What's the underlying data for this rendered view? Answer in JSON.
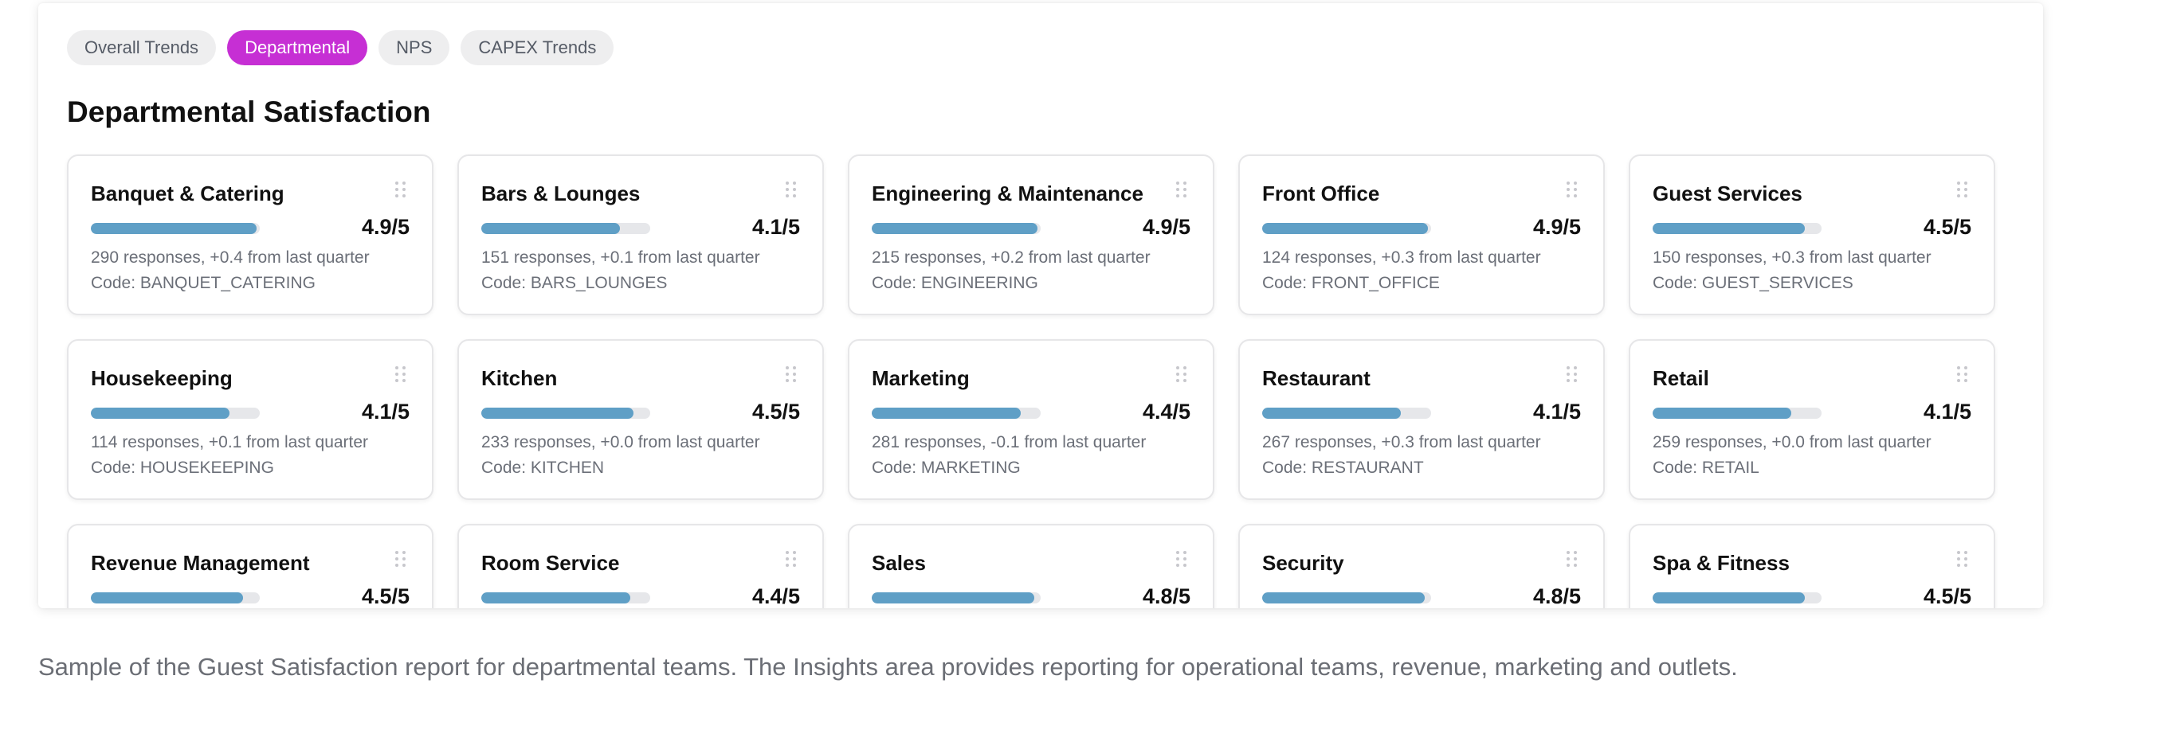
{
  "tabs": [
    {
      "label": "Overall Trends",
      "active": false
    },
    {
      "label": "Departmental",
      "active": true
    },
    {
      "label": "NPS",
      "active": false
    },
    {
      "label": "CAPEX Trends",
      "active": false
    }
  ],
  "section_title": "Departmental Satisfaction",
  "score_max": 5,
  "departments": [
    {
      "name": "Banquet & Catering",
      "score": 4.9,
      "score_text": "4.9/5",
      "responses": "290 responses, +0.4 from last quarter",
      "code": "Code: BANQUET_CATERING"
    },
    {
      "name": "Bars & Lounges",
      "score": 4.1,
      "score_text": "4.1/5",
      "responses": "151 responses, +0.1 from last quarter",
      "code": "Code: BARS_LOUNGES"
    },
    {
      "name": "Engineering & Maintenance",
      "score": 4.9,
      "score_text": "4.9/5",
      "responses": "215 responses, +0.2 from last quarter",
      "code": "Code: ENGINEERING"
    },
    {
      "name": "Front Office",
      "score": 4.9,
      "score_text": "4.9/5",
      "responses": "124 responses, +0.3 from last quarter",
      "code": "Code: FRONT_OFFICE"
    },
    {
      "name": "Guest Services",
      "score": 4.5,
      "score_text": "4.5/5",
      "responses": "150 responses, +0.3 from last quarter",
      "code": "Code: GUEST_SERVICES"
    },
    {
      "name": "Housekeeping",
      "score": 4.1,
      "score_text": "4.1/5",
      "responses": "114 responses, +0.1 from last quarter",
      "code": "Code: HOUSEKEEPING"
    },
    {
      "name": "Kitchen",
      "score": 4.5,
      "score_text": "4.5/5",
      "responses": "233 responses, +0.0 from last quarter",
      "code": "Code: KITCHEN"
    },
    {
      "name": "Marketing",
      "score": 4.4,
      "score_text": "4.4/5",
      "responses": "281 responses, -0.1 from last quarter",
      "code": "Code: MARKETING"
    },
    {
      "name": "Restaurant",
      "score": 4.1,
      "score_text": "4.1/5",
      "responses": "267 responses, +0.3 from last quarter",
      "code": "Code: RESTAURANT"
    },
    {
      "name": "Retail",
      "score": 4.1,
      "score_text": "4.1/5",
      "responses": "259 responses, +0.0 from last quarter",
      "code": "Code: RETAIL"
    },
    {
      "name": "Revenue Management",
      "score": 4.5,
      "score_text": "4.5/5",
      "responses": "",
      "code": ""
    },
    {
      "name": "Room Service",
      "score": 4.4,
      "score_text": "4.4/5",
      "responses": "",
      "code": ""
    },
    {
      "name": "Sales",
      "score": 4.8,
      "score_text": "4.8/5",
      "responses": "",
      "code": ""
    },
    {
      "name": "Security",
      "score": 4.8,
      "score_text": "4.8/5",
      "responses": "",
      "code": ""
    },
    {
      "name": "Spa & Fitness",
      "score": 4.5,
      "score_text": "4.5/5",
      "responses": "",
      "code": ""
    }
  ],
  "colors": {
    "active_tab": "#c62fd4",
    "bar_fill": "#5f9fc6",
    "bar_track": "#e6e7ea"
  },
  "caption": "Sample of the Guest Satisfaction report for departmental teams. The Insights area provides reporting for operational teams, revenue, marketing and outlets."
}
